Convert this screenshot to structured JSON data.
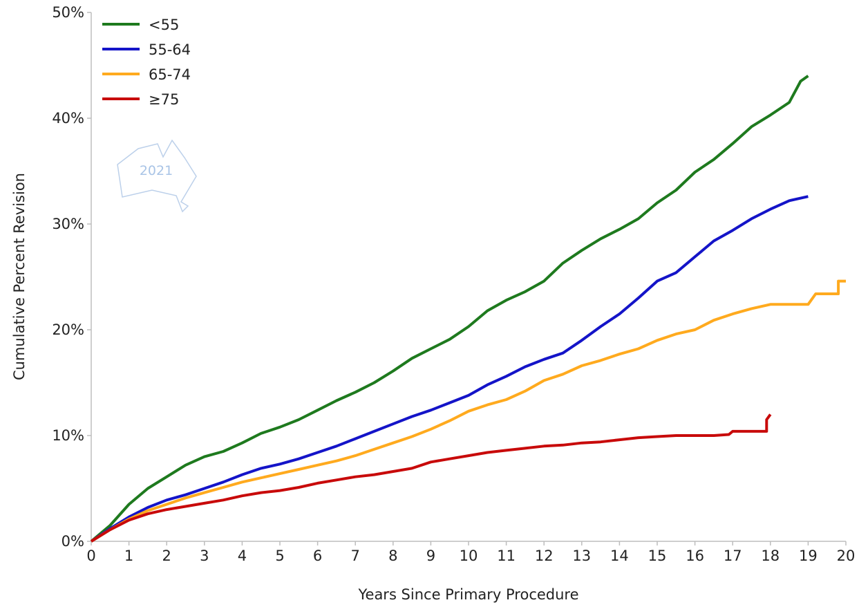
{
  "chart_data": {
    "type": "line",
    "title": "",
    "xlabel": "Years Since Primary Procedure",
    "ylabel": "Cumulative Percent Revision",
    "xlim": [
      0,
      20
    ],
    "ylim": [
      0,
      50
    ],
    "x_ticks": [
      "0",
      "1",
      "2",
      "3",
      "4",
      "5",
      "6",
      "7",
      "8",
      "9",
      "10",
      "11",
      "12",
      "13",
      "14",
      "15",
      "16",
      "17",
      "18",
      "19",
      "20"
    ],
    "y_ticks": [
      "0%",
      "10%",
      "20%",
      "30%",
      "40%",
      "50%"
    ],
    "grid": false,
    "legend_position": "top-left",
    "watermark": "2021",
    "series": [
      {
        "name": "<55",
        "color": "#1e7a1e",
        "points": [
          [
            0,
            0
          ],
          [
            0.5,
            1.5
          ],
          [
            1,
            3.5
          ],
          [
            1.5,
            5
          ],
          [
            2,
            6.1
          ],
          [
            2.5,
            7.2
          ],
          [
            3,
            8
          ],
          [
            3.5,
            8.5
          ],
          [
            4,
            9.3
          ],
          [
            4.5,
            10.2
          ],
          [
            5,
            10.8
          ],
          [
            5.5,
            11.5
          ],
          [
            6,
            12.4
          ],
          [
            6.5,
            13.3
          ],
          [
            7,
            14.1
          ],
          [
            7.5,
            15
          ],
          [
            8,
            16.1
          ],
          [
            8.5,
            17.3
          ],
          [
            9,
            18.2
          ],
          [
            9.5,
            19.1
          ],
          [
            10,
            20.3
          ],
          [
            10.5,
            21.8
          ],
          [
            11,
            22.8
          ],
          [
            11.5,
            23.6
          ],
          [
            12,
            24.6
          ],
          [
            12.5,
            26.3
          ],
          [
            13,
            27.5
          ],
          [
            13.5,
            28.6
          ],
          [
            14,
            29.5
          ],
          [
            14.5,
            30.5
          ],
          [
            15,
            32
          ],
          [
            15.5,
            33.2
          ],
          [
            16,
            34.9
          ],
          [
            16.5,
            36.1
          ],
          [
            17,
            37.6
          ],
          [
            17.5,
            39.2
          ],
          [
            18,
            40.3
          ],
          [
            18.5,
            41.5
          ],
          [
            18.8,
            43.5
          ],
          [
            19,
            44
          ]
        ]
      },
      {
        "name": "55-64",
        "color": "#1414c8",
        "points": [
          [
            0,
            0
          ],
          [
            0.5,
            1.2
          ],
          [
            1,
            2.3
          ],
          [
            1.5,
            3.2
          ],
          [
            2,
            3.9
          ],
          [
            2.5,
            4.4
          ],
          [
            3,
            5
          ],
          [
            3.5,
            5.6
          ],
          [
            4,
            6.3
          ],
          [
            4.5,
            6.9
          ],
          [
            5,
            7.3
          ],
          [
            5.5,
            7.8
          ],
          [
            6,
            8.4
          ],
          [
            6.5,
            9
          ],
          [
            7,
            9.7
          ],
          [
            7.5,
            10.4
          ],
          [
            8,
            11.1
          ],
          [
            8.5,
            11.8
          ],
          [
            9,
            12.4
          ],
          [
            9.5,
            13.1
          ],
          [
            10,
            13.8
          ],
          [
            10.5,
            14.8
          ],
          [
            11,
            15.6
          ],
          [
            11.5,
            16.5
          ],
          [
            12,
            17.2
          ],
          [
            12.5,
            17.8
          ],
          [
            13,
            19
          ],
          [
            13.5,
            20.3
          ],
          [
            14,
            21.5
          ],
          [
            14.5,
            23
          ],
          [
            15,
            24.6
          ],
          [
            15.5,
            25.4
          ],
          [
            16,
            26.9
          ],
          [
            16.5,
            28.4
          ],
          [
            17,
            29.4
          ],
          [
            17.5,
            30.5
          ],
          [
            18,
            31.4
          ],
          [
            18.5,
            32.2
          ],
          [
            19,
            32.6
          ]
        ]
      },
      {
        "name": "65-74",
        "color": "#ffaa1e",
        "points": [
          [
            0,
            0
          ],
          [
            0.5,
            1.1
          ],
          [
            1,
            2.1
          ],
          [
            1.5,
            2.9
          ],
          [
            2,
            3.5
          ],
          [
            2.5,
            4.1
          ],
          [
            3,
            4.6
          ],
          [
            3.5,
            5.1
          ],
          [
            4,
            5.6
          ],
          [
            4.5,
            6
          ],
          [
            5,
            6.4
          ],
          [
            5.5,
            6.8
          ],
          [
            6,
            7.2
          ],
          [
            6.5,
            7.6
          ],
          [
            7,
            8.1
          ],
          [
            7.5,
            8.7
          ],
          [
            8,
            9.3
          ],
          [
            8.5,
            9.9
          ],
          [
            9,
            10.6
          ],
          [
            9.5,
            11.4
          ],
          [
            10,
            12.3
          ],
          [
            10.5,
            12.9
          ],
          [
            11,
            13.4
          ],
          [
            11.5,
            14.2
          ],
          [
            12,
            15.2
          ],
          [
            12.5,
            15.8
          ],
          [
            13,
            16.6
          ],
          [
            13.5,
            17.1
          ],
          [
            14,
            17.7
          ],
          [
            14.5,
            18.2
          ],
          [
            15,
            19
          ],
          [
            15.5,
            19.6
          ],
          [
            16,
            20
          ],
          [
            16.5,
            20.9
          ],
          [
            17,
            21.5
          ],
          [
            17.5,
            22
          ],
          [
            18,
            22.4
          ],
          [
            19,
            22.4
          ],
          [
            19.2,
            23.4
          ],
          [
            19.8,
            23.4
          ],
          [
            19.8,
            24.6
          ],
          [
            20,
            24.6
          ]
        ]
      },
      {
        "name": "≥75",
        "color": "#c80a0a",
        "points": [
          [
            0,
            0
          ],
          [
            0.5,
            1.1
          ],
          [
            1,
            2
          ],
          [
            1.5,
            2.6
          ],
          [
            2,
            3
          ],
          [
            2.5,
            3.3
          ],
          [
            3,
            3.6
          ],
          [
            3.5,
            3.9
          ],
          [
            4,
            4.3
          ],
          [
            4.5,
            4.6
          ],
          [
            5,
            4.8
          ],
          [
            5.5,
            5.1
          ],
          [
            6,
            5.5
          ],
          [
            6.5,
            5.8
          ],
          [
            7,
            6.1
          ],
          [
            7.5,
            6.3
          ],
          [
            8,
            6.6
          ],
          [
            8.5,
            6.9
          ],
          [
            9,
            7.5
          ],
          [
            9.5,
            7.8
          ],
          [
            10,
            8.1
          ],
          [
            10.5,
            8.4
          ],
          [
            11,
            8.6
          ],
          [
            11.5,
            8.8
          ],
          [
            12,
            9
          ],
          [
            12.5,
            9.1
          ],
          [
            13,
            9.3
          ],
          [
            13.5,
            9.4
          ],
          [
            14,
            9.6
          ],
          [
            14.5,
            9.8
          ],
          [
            15,
            9.9
          ],
          [
            15.5,
            10
          ],
          [
            16,
            10
          ],
          [
            16.5,
            10
          ],
          [
            16.9,
            10.1
          ],
          [
            17,
            10.4
          ],
          [
            17.9,
            10.4
          ],
          [
            17.9,
            11.5
          ],
          [
            18,
            12
          ]
        ]
      }
    ]
  }
}
